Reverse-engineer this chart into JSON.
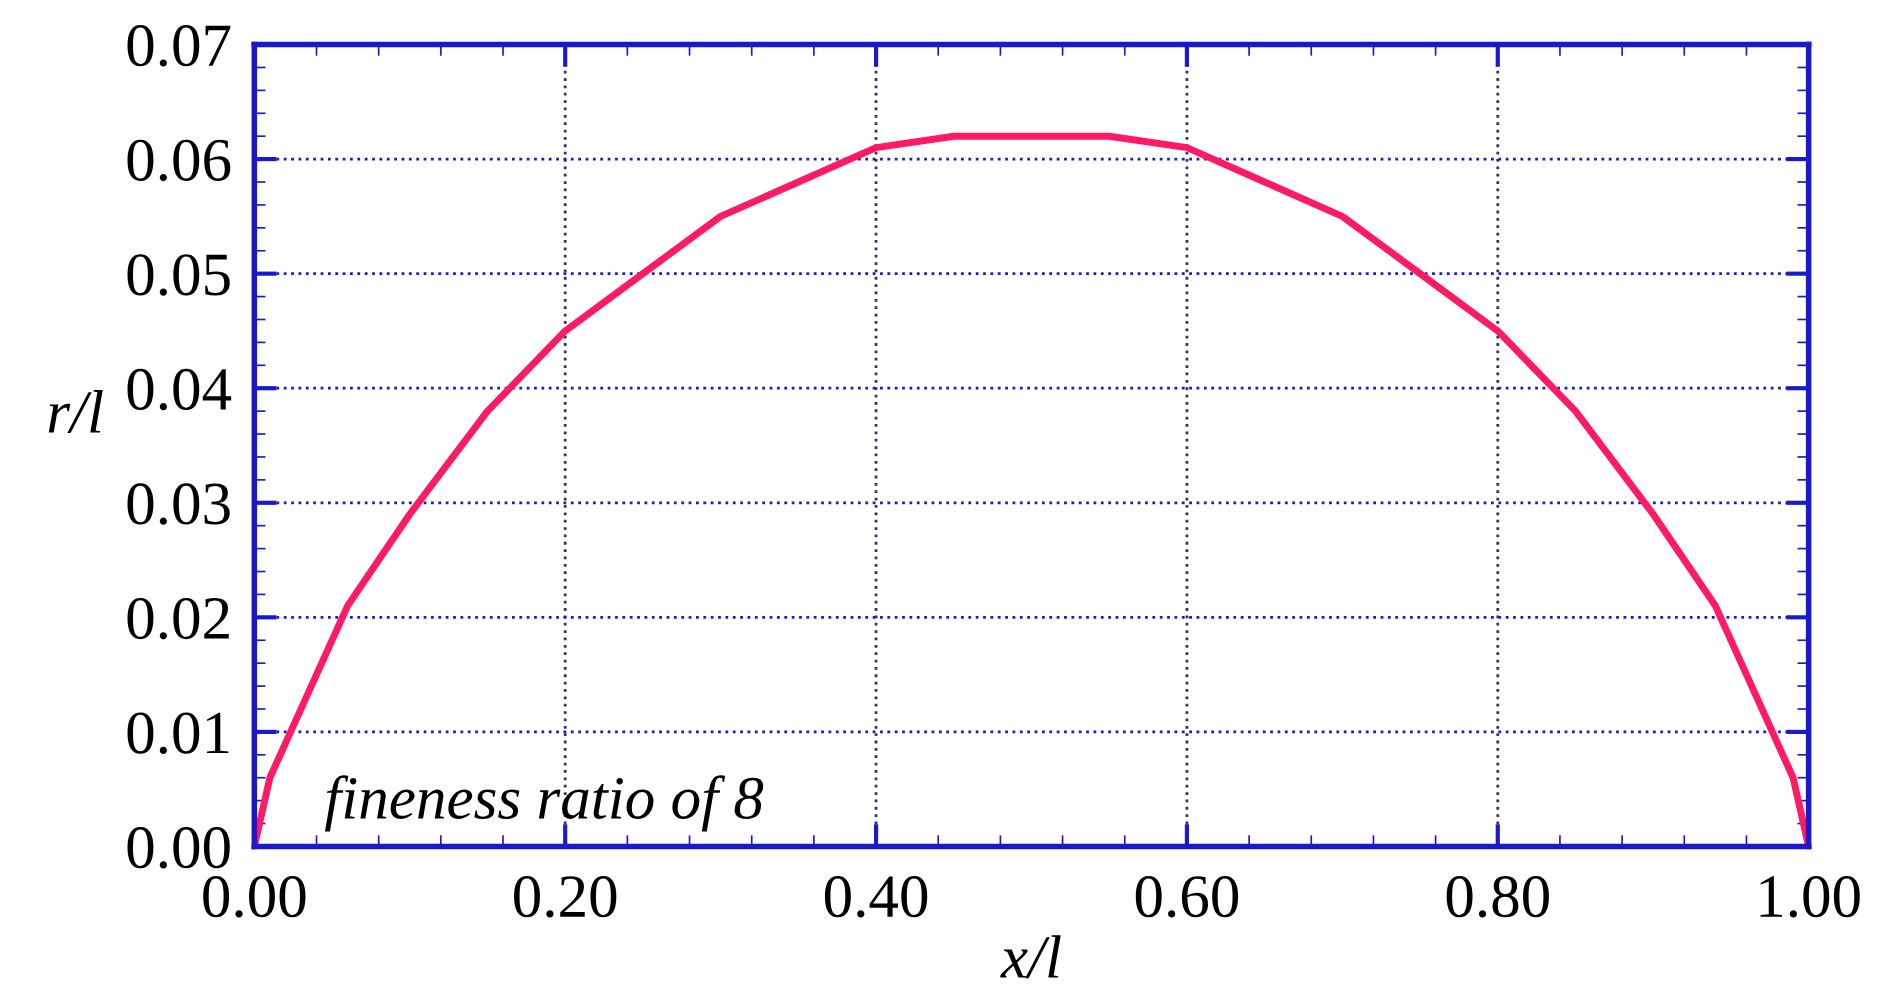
{
  "chart_data": {
    "type": "line",
    "xlabel": "x/l",
    "ylabel": "r/l",
    "x": [
      0,
      0.01,
      0.02,
      0.04,
      0.06,
      0.08,
      0.1,
      0.15,
      0.2,
      0.25,
      0.3,
      0.35,
      0.4,
      0.45,
      0.5,
      0.55,
      0.6,
      0.65,
      0.7,
      0.75,
      0.8,
      0.85,
      0.9,
      0.92,
      0.94,
      0.96,
      0.98,
      0.99,
      1
    ],
    "series": [
      {
        "color": "#ff1a66",
        "values": [
          0,
          0.006,
          0.009,
          0.015,
          0.021,
          0.025,
          0.029,
          0.038,
          0.045,
          0.05,
          0.055,
          0.058,
          0.061,
          0.062,
          0.062,
          0.062,
          0.061,
          0.058,
          0.055,
          0.05,
          0.045,
          0.038,
          0.029,
          0.025,
          0.021,
          0.015,
          0.009,
          0.006,
          0
        ]
      }
    ],
    "xlim": [
      0,
      1
    ],
    "ylim": [
      0,
      0.07
    ],
    "xticks": [
      {
        "value": 0,
        "label": "0.00"
      },
      {
        "value": 0.2,
        "label": "0.20"
      },
      {
        "value": 0.4,
        "label": "0.40"
      },
      {
        "value": 0.6,
        "label": "0.60"
      },
      {
        "value": 0.8,
        "label": "0.80"
      },
      {
        "value": 1,
        "label": "1.00"
      }
    ],
    "yticks": [
      {
        "value": 0,
        "label": "0.00"
      },
      {
        "value": 0.01,
        "label": "0.01"
      },
      {
        "value": 0.02,
        "label": "0.02"
      },
      {
        "value": 0.03,
        "label": "0.03"
      },
      {
        "value": 0.04,
        "label": "0.04"
      },
      {
        "value": 0.05,
        "label": "0.05"
      },
      {
        "value": 0.06,
        "label": "0.06"
      },
      {
        "value": 0.07,
        "label": "0.07"
      }
    ],
    "grid": true,
    "marker": "none",
    "line_style": "solid",
    "annotations": [
      "fineness ratio of 8"
    ]
  }
}
